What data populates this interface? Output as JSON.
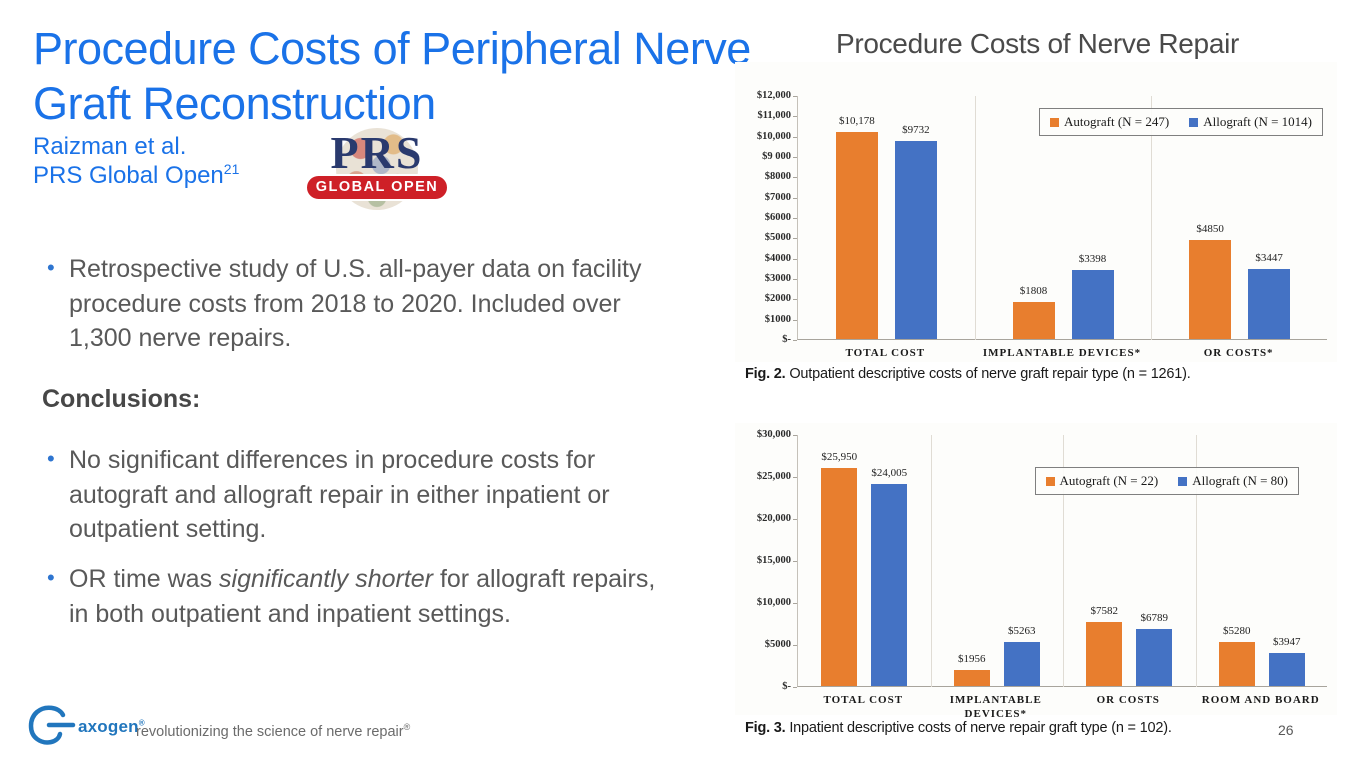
{
  "slide": {
    "title": "Procedure Costs of Peripheral Nerve Graft Reconstruction",
    "authors": "Raizman et al.",
    "journal": "PRS Global Open",
    "journal_ref_sup": "21",
    "study_bullet": "Retrospective study of U.S. all-payer data on facility procedure costs from 2018 to 2020. Included over 1,300 nerve repairs.",
    "conclusions_heading": "Conclusions:",
    "conclusion_1": "No significant differences in procedure costs for autograft and allograft repair in either inpatient or outpatient setting.",
    "conclusion_2_pre": "OR time was ",
    "conclusion_2_italic": "significantly shorter",
    "conclusion_2_post": " for allograft repairs, in both outpatient and inpatient settings.",
    "page_number": "26"
  },
  "prs_logo": {
    "text": "PRS",
    "badge": "GLOBAL OPEN"
  },
  "footer": {
    "logo_text": "axogen",
    "logo_reg": "®",
    "tagline": "revolutionizing the science of nerve repair",
    "tagline_sup": "®"
  },
  "right_panel": {
    "title": "Procedure Costs of Nerve Repair"
  },
  "colors": {
    "accent_blue": "#1a72e8",
    "autograft_orange": "#e87e2e",
    "allograft_blue": "#4472c4",
    "prs_navy": "#2a3a6e",
    "prs_red": "#ce2027",
    "axogen_blue": "#2176bd"
  },
  "chart_data": [
    {
      "type": "bar",
      "setting": "outpatient",
      "categories": [
        "TOTAL COST",
        "IMPLANTABLE DEVICES*",
        "OR COSTS*"
      ],
      "series": [
        {
          "name": "Autograft (N = 247)",
          "color": "#e87e2e",
          "values": [
            10178,
            1808,
            4850
          ],
          "labels": [
            "$10,178",
            "$1808",
            "$4850"
          ]
        },
        {
          "name": "Allograft (N = 1014)",
          "color": "#4472c4",
          "values": [
            9732,
            3398,
            3447
          ],
          "labels": [
            "$9732",
            "$3398",
            "$3447"
          ]
        }
      ],
      "ylim": [
        0,
        12000
      ],
      "yticks": [
        "$12,000",
        "$11,000",
        "$10,000",
        "$9 000",
        "$8000",
        "$7000",
        "$6000",
        "$5000",
        "$4000",
        "$3000",
        "$2000",
        "$1000",
        "$-"
      ],
      "grid": "vertical-category-separators",
      "legend_position": "top-right",
      "caption_bold": "Fig. 2.",
      "caption_rest": " Outpatient descriptive costs of nerve graft repair type (n = 1261)."
    },
    {
      "type": "bar",
      "setting": "inpatient",
      "categories": [
        "TOTAL COST",
        "IMPLANTABLE DEVICES*",
        "OR COSTS",
        "ROOM AND BOARD"
      ],
      "series": [
        {
          "name": "Autograft (N = 22)",
          "color": "#e87e2e",
          "values": [
            25950,
            1956,
            7582,
            5280
          ],
          "labels": [
            "$25,950",
            "$1956",
            "$7582",
            "$5280"
          ]
        },
        {
          "name": "Allograft (N = 80)",
          "color": "#4472c4",
          "values": [
            24005,
            5263,
            6789,
            3947
          ],
          "labels": [
            "$24,005",
            "$5263",
            "$6789",
            "$3947"
          ]
        }
      ],
      "ylim": [
        0,
        30000
      ],
      "yticks": [
        "$30,000",
        "$25,000",
        "$20,000",
        "$15,000",
        "$10,000",
        "$5000",
        "$-"
      ],
      "grid": "vertical-category-separators",
      "legend_position": "top-right",
      "caption_bold": "Fig. 3.",
      "caption_rest": " Inpatient descriptive costs of nerve repair graft type (n = 102)."
    }
  ]
}
